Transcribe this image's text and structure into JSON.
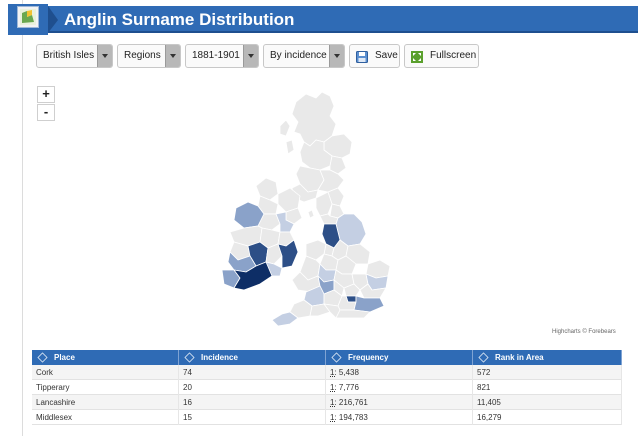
{
  "header": {
    "title": "Anglin Surname Distribution"
  },
  "controls": {
    "region_select": "British Isles",
    "level_select": "Regions",
    "year_select": "1881-1901",
    "mode_select": "By incidence",
    "save_label": "Save",
    "fullscreen_label": "Fullscreen"
  },
  "map": {
    "zoom_in": "+",
    "zoom_out": "-",
    "credit": "Highcharts © Forebears",
    "colors": {
      "none": "#e9e9e9",
      "light": "#c4cfe3",
      "mid": "#8aa2c9",
      "dark": "#2d4f87",
      "darkest": "#0e2e66",
      "border": "#ffffff"
    }
  },
  "table": {
    "columns": [
      "Place",
      "Incidence",
      "Frequency",
      "Rank in Area"
    ],
    "rows": [
      {
        "place": "Cork",
        "incidence": "74",
        "freq_one": "1:",
        "freq_val": " 5,438",
        "rank": "572"
      },
      {
        "place": "Tipperary",
        "incidence": "20",
        "freq_one": "1:",
        "freq_val": " 7,776",
        "rank": "821"
      },
      {
        "place": "Lancashire",
        "incidence": "16",
        "freq_one": "1:",
        "freq_val": " 216,761",
        "rank": "11,405"
      },
      {
        "place": "Middlesex",
        "incidence": "15",
        "freq_one": "1:",
        "freq_val": " 194,783",
        "rank": "16,279"
      }
    ]
  }
}
